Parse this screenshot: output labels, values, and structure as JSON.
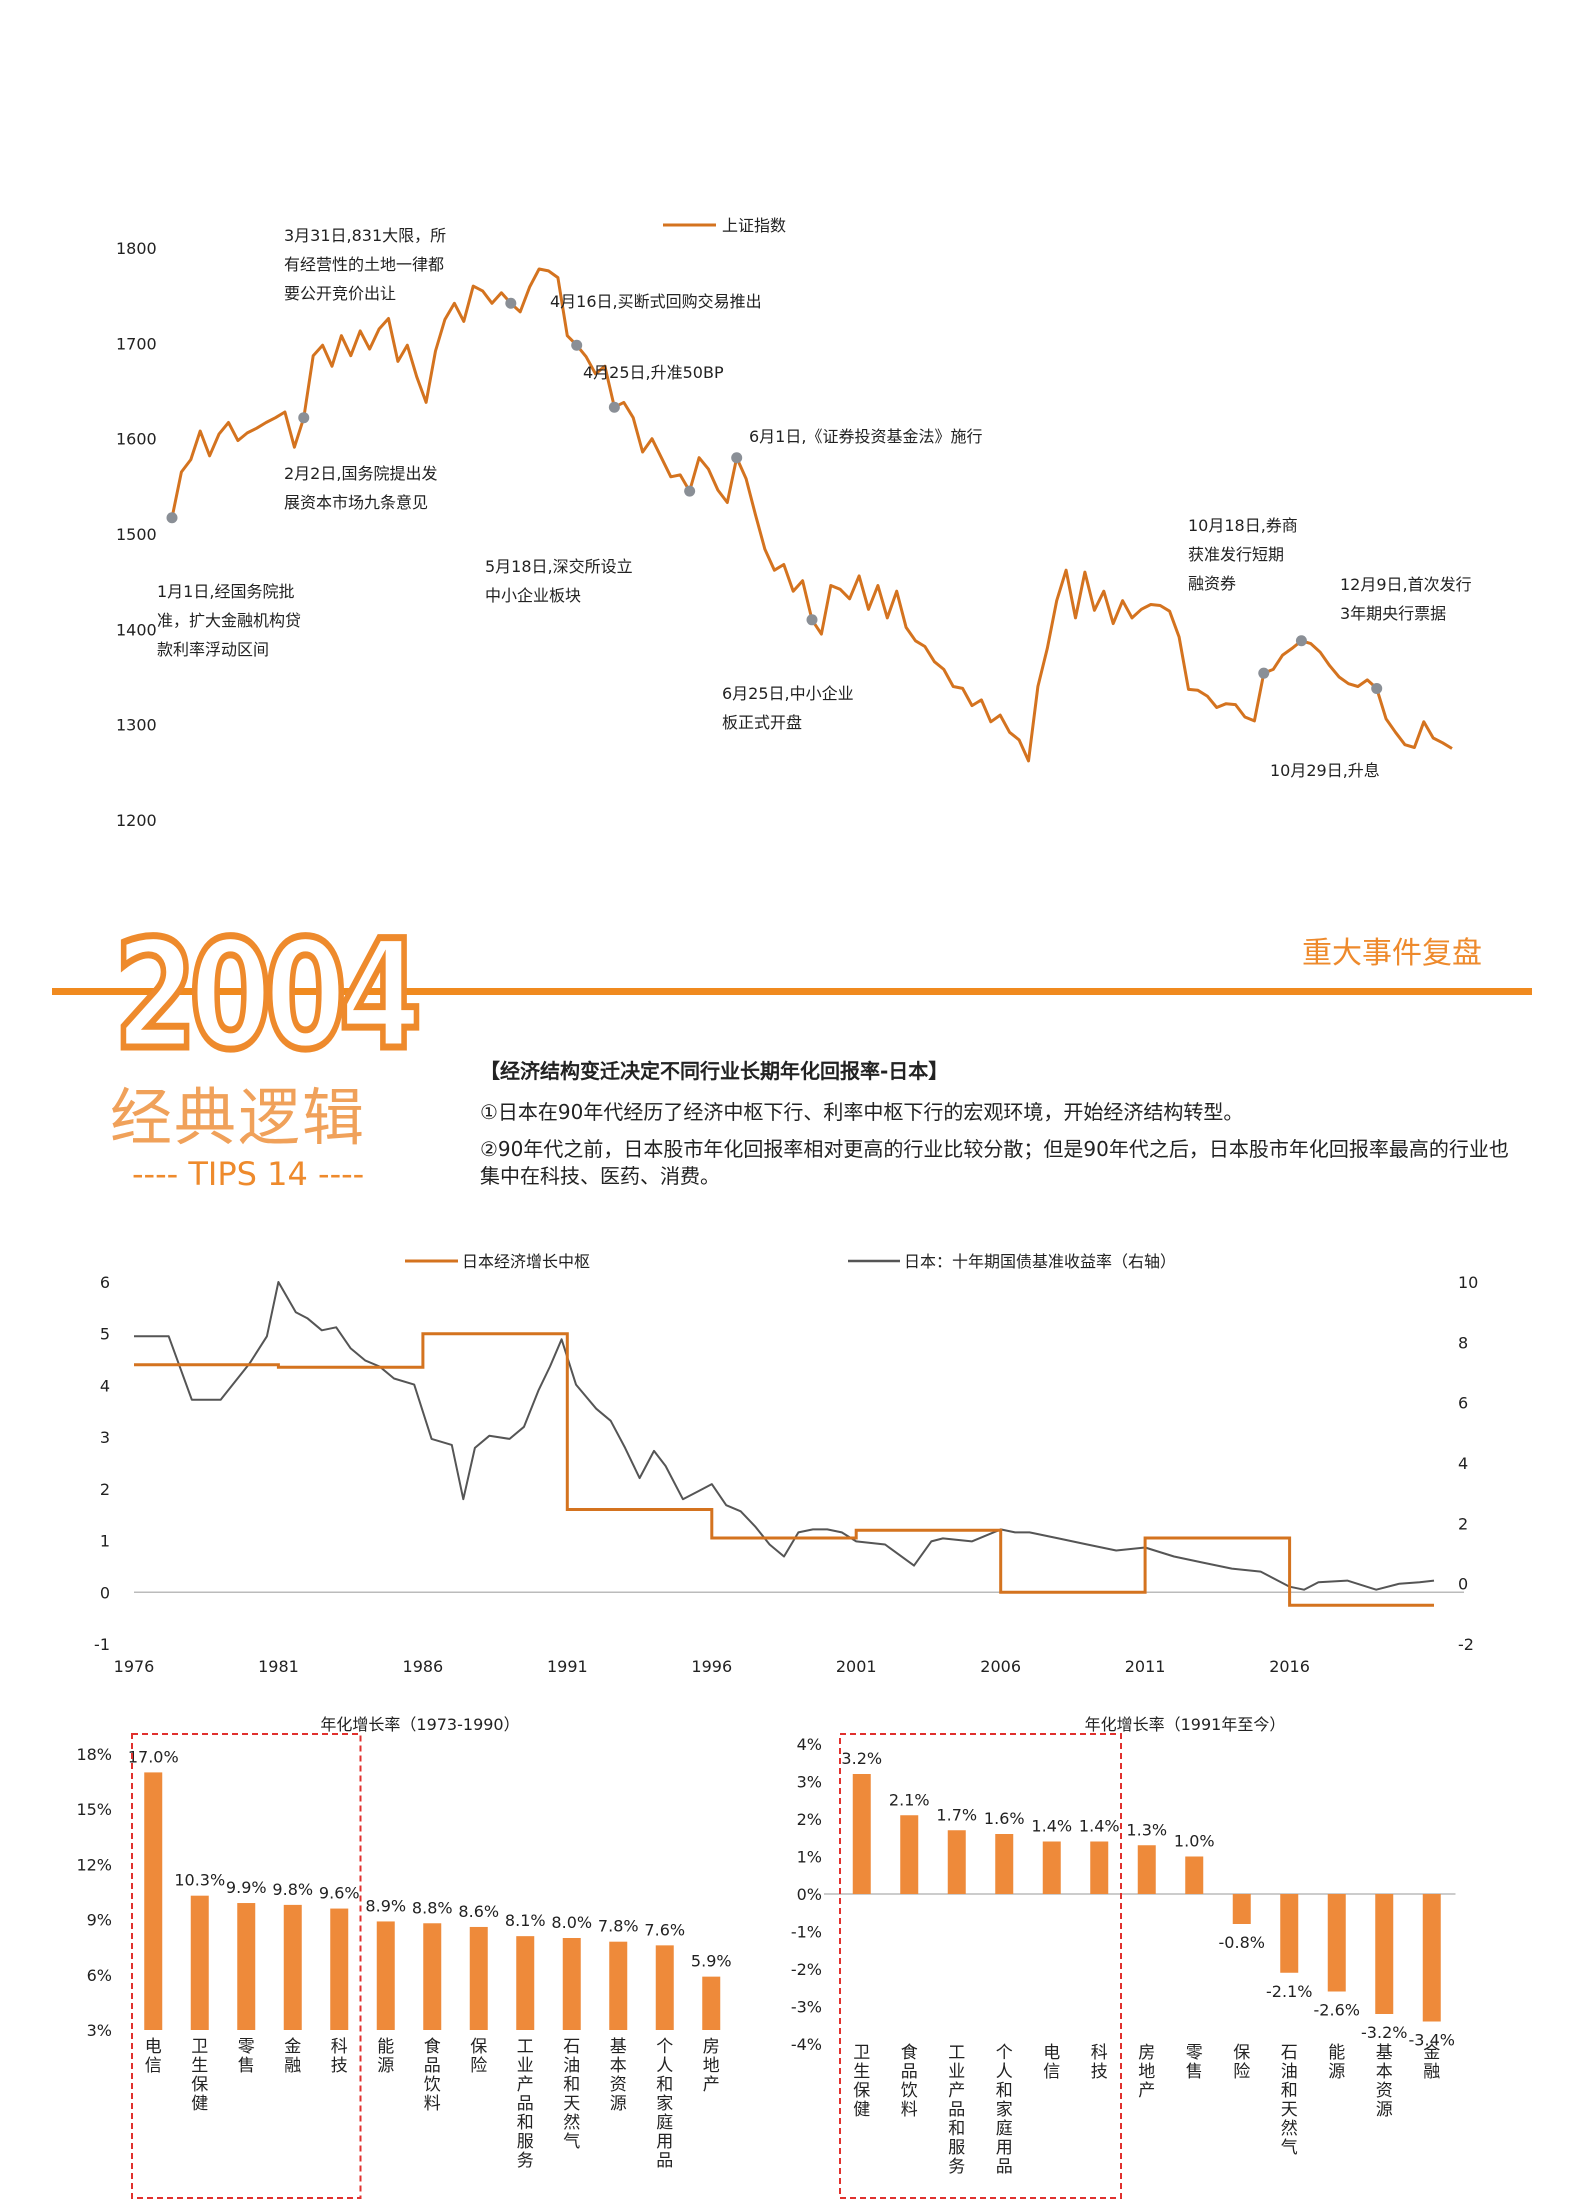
{
  "header": {
    "year": "2004",
    "subtitle": "经典逻辑",
    "tips": "---- TIPS 14 ----",
    "right_title": "重大事件复盘"
  },
  "text": {
    "title": "【经济结构变迁决定不同行业长期年化回报率-日本】",
    "p1": "①日本在90年代经历了经济中枢下行、利率中枢下行的宏观环境，开始经济结构转型。",
    "p2": "②90年代之前，日本股市年化回报率相对更高的行业比较分散；但是90年代之后，日本股市年化回报率最高的行业也集中在科技、医药、消费。"
  },
  "colors": {
    "accent": "#d4731f",
    "bar": "#ee8a3a",
    "line2": "#555555",
    "marker": "#8a8f96",
    "dash": "#e0312e"
  },
  "chart_data": [
    {
      "type": "line",
      "legend": [
        "上证指数"
      ],
      "yticks": [
        "1800",
        "1700",
        "1600",
        "1500",
        "1400",
        "1300",
        "1200"
      ],
      "ylim": [
        1200,
        1800
      ],
      "series": [
        {
          "name": "上证指数",
          "values": [
            1517,
            1565,
            1578,
            1608,
            1582,
            1605,
            1617,
            1598,
            1606,
            1611,
            1617,
            1622,
            1628,
            1591,
            1622,
            1687,
            1698,
            1676,
            1708,
            1687,
            1713,
            1694,
            1715,
            1726,
            1681,
            1698,
            1665,
            1638,
            1692,
            1725,
            1742,
            1723,
            1760,
            1755,
            1742,
            1753,
            1742,
            1733,
            1759,
            1778,
            1776,
            1769,
            1708,
            1698,
            1686,
            1668,
            1676,
            1633,
            1638,
            1622,
            1586,
            1600,
            1580,
            1560,
            1562,
            1545,
            1580,
            1568,
            1546,
            1533,
            1580,
            1558,
            1520,
            1484,
            1462,
            1468,
            1440,
            1451,
            1410,
            1395,
            1446,
            1442,
            1432,
            1456,
            1421,
            1446,
            1412,
            1440,
            1402,
            1388,
            1382,
            1366,
            1358,
            1340,
            1338,
            1320,
            1326,
            1303,
            1310,
            1292,
            1284,
            1262,
            1340,
            1380,
            1430,
            1462,
            1412,
            1460,
            1420,
            1440,
            1406,
            1430,
            1412,
            1421,
            1426,
            1425,
            1419,
            1392,
            1337,
            1336,
            1330,
            1318,
            1322,
            1321,
            1308,
            1304,
            1354,
            1358,
            1373,
            1380,
            1388,
            1385,
            1376,
            1362,
            1350,
            1343,
            1340,
            1347,
            1338,
            1306,
            1292,
            1279,
            1276,
            1303,
            1286,
            1281,
            1275
          ]
        }
      ],
      "annotations": [
        {
          "id": "a1",
          "lines": [
            "1月1日,经国务院批",
            "准，扩大金融机构贷",
            "款利率浮动区间"
          ]
        },
        {
          "id": "a2",
          "lines": [
            "2月2日,国务院提出发",
            "展资本市场九条意见"
          ]
        },
        {
          "id": "a3",
          "lines": [
            "3月31日,831大限，所",
            "有经营性的土地一律都",
            "要公开竞价出让"
          ]
        },
        {
          "id": "a4",
          "lines": [
            "4月16日,买断式回购交易推出"
          ]
        },
        {
          "id": "a5",
          "lines": [
            "4月25日,升准50BP"
          ]
        },
        {
          "id": "a6",
          "lines": [
            "5月18日,深交所设立",
            "中小企业板块"
          ]
        },
        {
          "id": "a7",
          "lines": [
            "6月1日,《证券投资基金法》施行"
          ]
        },
        {
          "id": "a8",
          "lines": [
            "6月25日,中小企业",
            "板正式开盘"
          ]
        },
        {
          "id": "a9",
          "lines": [
            "10月18日,券商",
            "获准发行短期",
            "融资券"
          ]
        },
        {
          "id": "a10",
          "lines": [
            "10月29日,升息"
          ]
        },
        {
          "id": "a11",
          "lines": [
            "12月9日,首次发行",
            "3年期央行票据"
          ]
        }
      ],
      "markers": [
        {
          "idx": 0
        },
        {
          "idx": 14
        },
        {
          "idx": 36
        },
        {
          "idx": 43
        },
        {
          "idx": 47
        },
        {
          "idx": 55
        },
        {
          "idx": 60
        },
        {
          "idx": 68
        },
        {
          "idx": 116
        },
        {
          "idx": 120
        },
        {
          "idx": 128
        }
      ]
    },
    {
      "type": "line",
      "legend": [
        "日本经济增长中枢",
        "日本：十年期国债基准收益率（右轴）"
      ],
      "categories": [
        "1976",
        "1981",
        "1986",
        "1991",
        "1996",
        "2001",
        "2006",
        "2011",
        "2016"
      ],
      "yticks_left": [
        "6",
        "5",
        "4",
        "3",
        "2",
        "1",
        "0",
        "-1"
      ],
      "yticks_right": [
        "10",
        "8",
        "6",
        "4",
        "2",
        "0",
        "-2"
      ],
      "ylim_left": [
        -1,
        6
      ],
      "ylim_right": [
        -2,
        10
      ],
      "series": [
        {
          "name": "日本经济增长中枢",
          "x": [
            1976,
            1981,
            1981,
            1986,
            1986,
            1991,
            1991,
            1996,
            1996,
            2001,
            2001,
            2006,
            2006,
            2011,
            2011,
            2016,
            2016,
            2021
          ],
          "values": [
            4.4,
            4.4,
            4.35,
            4.35,
            5.0,
            5.0,
            1.6,
            1.6,
            1.05,
            1.05,
            1.2,
            1.2,
            0.0,
            0.0,
            1.05,
            1.05,
            -0.25,
            -0.25
          ]
        },
        {
          "name": "日本：十年期国债基准收益率（右轴）",
          "x": [
            1976,
            1977.2,
            1978,
            1979,
            1980,
            1980.6,
            1981,
            1981.6,
            1982,
            1982.5,
            1983,
            1983.5,
            1984,
            1984.5,
            1985,
            1985.7,
            1986.3,
            1987,
            1987.4,
            1987.8,
            1988.3,
            1989,
            1989.5,
            1990,
            1990.4,
            1990.8,
            1991.3,
            1992,
            1992.5,
            1993,
            1993.5,
            1994,
            1994.4,
            1995,
            1995.6,
            1996,
            1996.5,
            1997,
            1997.5,
            1998,
            1998.5,
            1999,
            1999.5,
            2000,
            2000.5,
            2001,
            2002,
            2003,
            2003.6,
            2004,
            2005,
            2006,
            2006.5,
            2007,
            2008,
            2009,
            2010,
            2011,
            2012,
            2013,
            2014,
            2015,
            2016,
            2016.5,
            2017,
            2018,
            2019,
            2019.8,
            2020.5,
            2021
          ],
          "values": [
            8.2,
            8.2,
            6.1,
            6.1,
            7.3,
            8.2,
            10.0,
            9.0,
            8.8,
            8.4,
            8.5,
            7.8,
            7.4,
            7.2,
            6.8,
            6.6,
            4.8,
            4.6,
            2.8,
            4.5,
            4.9,
            4.8,
            5.2,
            6.4,
            7.2,
            8.1,
            6.6,
            5.8,
            5.4,
            4.5,
            3.5,
            4.4,
            3.9,
            2.8,
            3.1,
            3.3,
            2.6,
            2.4,
            1.9,
            1.3,
            0.9,
            1.7,
            1.8,
            1.8,
            1.7,
            1.4,
            1.3,
            0.6,
            1.4,
            1.5,
            1.4,
            1.8,
            1.7,
            1.7,
            1.5,
            1.3,
            1.1,
            1.2,
            0.9,
            0.7,
            0.5,
            0.4,
            -0.1,
            -0.2,
            0.05,
            0.1,
            -0.2,
            0.0,
            0.05,
            0.1
          ]
        }
      ]
    },
    {
      "type": "bar",
      "title": "年化增长率（1973-1990）",
      "yticks": [
        "18%",
        "15%",
        "12%",
        "9%",
        "6%",
        "3%"
      ],
      "ylim": [
        3,
        18
      ],
      "categories": [
        "电信",
        "卫生保健",
        "零售",
        "金融",
        "科技",
        "能源",
        "食品饮料",
        "保险",
        "工业产品和服务",
        "石油和天然气",
        "基本资源",
        "个人和家庭用品",
        "房地产"
      ],
      "values": [
        17.0,
        10.3,
        9.9,
        9.8,
        9.6,
        8.9,
        8.8,
        8.6,
        8.1,
        8.0,
        7.8,
        7.6,
        5.9
      ],
      "labels": [
        "17.0%",
        "10.3%",
        "9.9%",
        "9.8%",
        "9.6%",
        "8.9%",
        "8.8%",
        "8.6%",
        "8.1%",
        "8.0%",
        "7.8%",
        "7.6%",
        "5.9%"
      ],
      "highlight": [
        0,
        4
      ]
    },
    {
      "type": "bar",
      "title": "年化增长率（1991年至今）",
      "yticks": [
        "4%",
        "3%",
        "2%",
        "1%",
        "0%",
        "-1%",
        "-2%",
        "-3%",
        "-4%"
      ],
      "ylim": [
        -4,
        4
      ],
      "categories": [
        "卫生保健",
        "食品饮料",
        "工业产品和服务",
        "个人和家庭用品",
        "电信",
        "科技",
        "房地产",
        "零售",
        "保险",
        "石油和天然气",
        "能源",
        "基本资源",
        "金融"
      ],
      "values": [
        3.2,
        2.1,
        1.7,
        1.6,
        1.4,
        1.4,
        1.3,
        1.0,
        -0.8,
        -2.1,
        -2.6,
        -3.2,
        -3.4
      ],
      "labels": [
        "3.2%",
        "2.1%",
        "1.7%",
        "1.6%",
        "1.4%",
        "1.4%",
        "1.3%",
        "1.0%",
        "-0.8%",
        "-2.1%",
        "-2.6%",
        "-3.2%",
        "-3.4%"
      ],
      "highlight": [
        0,
        5
      ]
    }
  ]
}
